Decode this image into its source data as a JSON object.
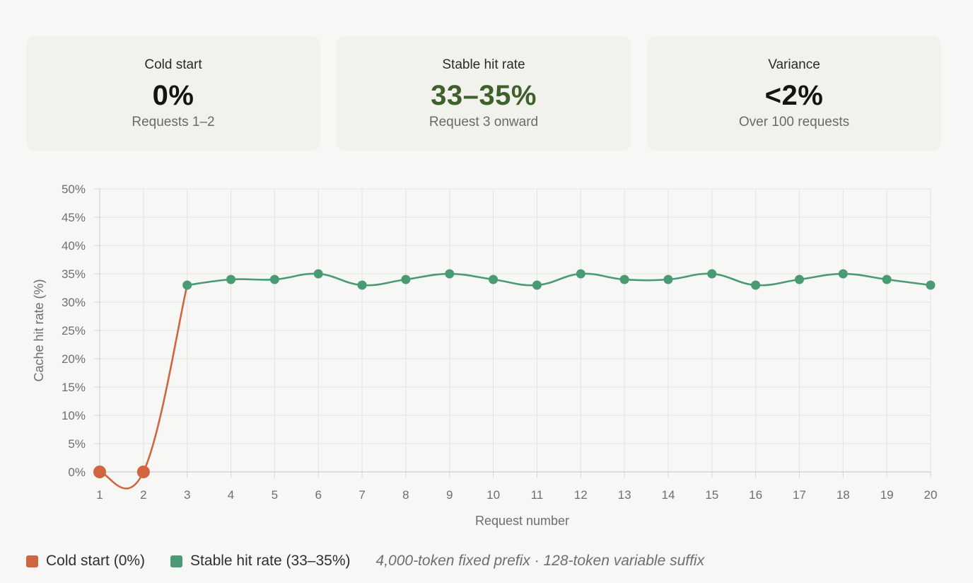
{
  "cards": [
    {
      "label": "Cold start",
      "value": "0%",
      "sub": "Requests 1–2"
    },
    {
      "label": "Stable hit rate",
      "value": "33–35%",
      "sub": "Request 3 onward"
    },
    {
      "label": "Variance",
      "value": "<2%",
      "sub": "Over 100 requests"
    }
  ],
  "colors": {
    "cold": "#d0653f",
    "stable": "#4a9a74",
    "stable_value_text": "#3f5f2c"
  },
  "chart_data": {
    "type": "line",
    "xlabel": "Request number",
    "ylabel": "Cache hit rate (%)",
    "x": [
      1,
      2,
      3,
      4,
      5,
      6,
      7,
      8,
      9,
      10,
      11,
      12,
      13,
      14,
      15,
      16,
      17,
      18,
      19,
      20
    ],
    "ylim": [
      0,
      50
    ],
    "y_ticks": [
      "0%",
      "5%",
      "10%",
      "15%",
      "20%",
      "25%",
      "30%",
      "35%",
      "40%",
      "45%",
      "50%"
    ],
    "y_tick_values": [
      0,
      5,
      10,
      15,
      20,
      25,
      30,
      35,
      40,
      45,
      50
    ],
    "grid": true,
    "legend_position": "bottom-left",
    "series": [
      {
        "name": "Cold start (0%)",
        "color": "#d0653f",
        "x": [
          1,
          2,
          3
        ],
        "values": [
          0,
          0,
          33
        ],
        "markers_at": [
          1,
          2
        ]
      },
      {
        "name": "Stable hit rate (33–35%)",
        "color": "#4a9a74",
        "x": [
          3,
          4,
          5,
          6,
          7,
          8,
          9,
          10,
          11,
          12,
          13,
          14,
          15,
          16,
          17,
          18,
          19,
          20
        ],
        "values": [
          33,
          34,
          34,
          35,
          33,
          34,
          35,
          34,
          33,
          35,
          34,
          34,
          35,
          33,
          34,
          35,
          34,
          33
        ]
      }
    ]
  },
  "legend": {
    "items": [
      {
        "label": "Cold start (0%)",
        "color": "#d0653f"
      },
      {
        "label": "Stable hit rate (33–35%)",
        "color": "#4a9a74"
      }
    ],
    "note": "4,000-token fixed prefix · 128-token variable suffix"
  }
}
